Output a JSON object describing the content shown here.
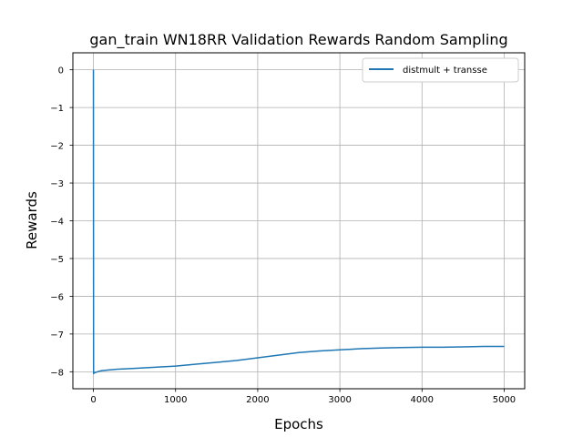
{
  "chart_data": {
    "type": "line",
    "title": "gan_train WN18RR Validation Rewards Random Sampling",
    "xlabel": "Epochs",
    "ylabel": "Rewards",
    "xlim": [
      -250,
      5250
    ],
    "ylim": [
      -8.45,
      0.45
    ],
    "xticks": [
      0,
      1000,
      2000,
      3000,
      4000,
      5000
    ],
    "xtick_labels": [
      "0",
      "1000",
      "2000",
      "3000",
      "4000",
      "5000"
    ],
    "yticks": [
      0,
      -1,
      -2,
      -3,
      -4,
      -5,
      -6,
      -7,
      -8
    ],
    "ytick_labels": [
      "0",
      "−1",
      "−2",
      "−3",
      "−4",
      "−5",
      "−6",
      "−7",
      "−8"
    ],
    "grid": true,
    "legend_position": "top-right",
    "series": [
      {
        "name": "distmult + transse",
        "color": "#1f77b4",
        "x": [
          0,
          2,
          4,
          10,
          25,
          50,
          100,
          200,
          300,
          500,
          750,
          1000,
          1250,
          1500,
          1750,
          2000,
          2250,
          2500,
          2750,
          3000,
          3250,
          3500,
          3750,
          4000,
          4250,
          4500,
          4750,
          5000
        ],
        "y": [
          0,
          -8.05,
          -8.04,
          -8.03,
          -8.02,
          -8.0,
          -7.97,
          -7.95,
          -7.93,
          -7.91,
          -7.88,
          -7.85,
          -7.8,
          -7.75,
          -7.7,
          -7.63,
          -7.56,
          -7.49,
          -7.45,
          -7.42,
          -7.39,
          -7.37,
          -7.36,
          -7.35,
          -7.35,
          -7.34,
          -7.33,
          -7.33
        ]
      }
    ]
  }
}
